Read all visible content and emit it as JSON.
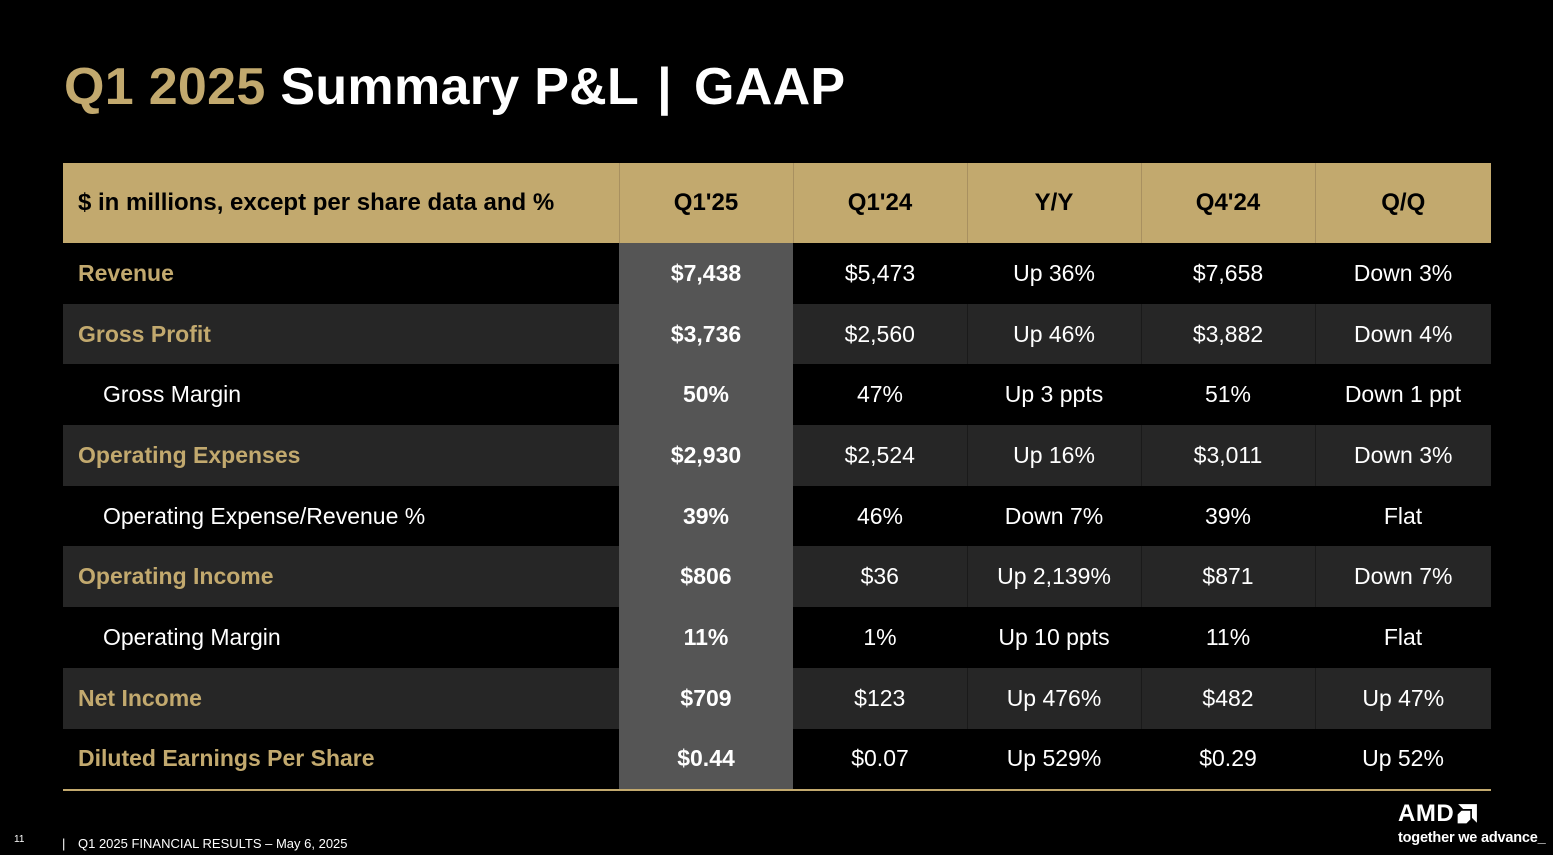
{
  "title": {
    "accent": "Q1 2025",
    "main": "Summary P&L",
    "separator": "|",
    "suffix": "GAAP"
  },
  "table": {
    "columns": [
      "$ in millions, except per share data and %",
      "Q1'25",
      "Q1'24",
      "Y/Y",
      "Q4'24",
      "Q/Q"
    ],
    "rows": [
      {
        "label": "Revenue",
        "values": [
          "$7,438",
          "$5,473",
          "Up 36%",
          "$7,658",
          "Down 3%"
        ]
      },
      {
        "label": "Gross Profit",
        "values": [
          "$3,736",
          "$2,560",
          "Up 46%",
          "$3,882",
          "Down 4%"
        ]
      },
      {
        "label": "Gross Margin",
        "values": [
          "50%",
          "47%",
          "Up 3 ppts",
          "51%",
          "Down 1 ppt"
        ]
      },
      {
        "label": "Operating Expenses",
        "values": [
          "$2,930",
          "$2,524",
          "Up 16%",
          "$3,011",
          "Down 3%"
        ]
      },
      {
        "label": "Operating Expense/Revenue %",
        "values": [
          "39%",
          "46%",
          "Down 7%",
          "39%",
          "Flat"
        ]
      },
      {
        "label": "Operating Income",
        "values": [
          "$806",
          "$36",
          "Up 2,139%",
          "$871",
          "Down 7%"
        ]
      },
      {
        "label": "Operating Margin",
        "values": [
          "11%",
          "1%",
          "Up 10 ppts",
          "11%",
          "Flat"
        ]
      },
      {
        "label": "Net Income",
        "values": [
          "$709",
          "$123",
          "Up 476%",
          "$482",
          "Up 47%"
        ]
      },
      {
        "label": "Diluted Earnings Per Share",
        "values": [
          "$0.44",
          "$0.07",
          "Up 529%",
          "$0.29",
          "Up 52%"
        ]
      }
    ]
  },
  "footer": {
    "page_number": "11",
    "separator": "|",
    "text": "Q1 2025 FINANCIAL RESULTS – May 6, 2025"
  },
  "logo": {
    "wordmark": "AMD",
    "tagline": "together we advance_",
    "icon": "amd-arrow-icon"
  },
  "colors": {
    "accent_gold": "#c2a96e",
    "background": "#000000",
    "band_row": "#262626",
    "current_quarter": "#555555"
  }
}
